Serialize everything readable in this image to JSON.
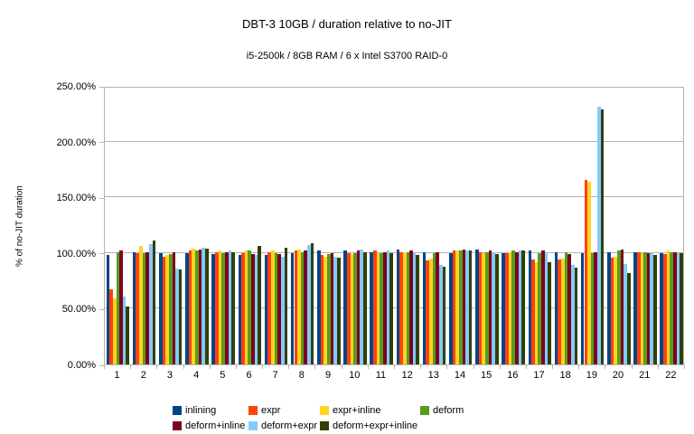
{
  "chart_data": {
    "type": "bar",
    "title": "DBT-3 10GB / duration relative to no-JIT",
    "subtitle": "i5-2500k / 8GB RAM / 6 x Intel S3700 RAID-0",
    "ylabel": "% of no-JIT duration",
    "xlabel": "",
    "ylim": [
      0,
      250
    ],
    "y_tick_step": 50,
    "y_tick_labels": [
      "0.00%",
      "50.00%",
      "100.00%",
      "150.00%",
      "200.00%",
      "250.00%"
    ],
    "grid": "horizontal",
    "legend_position": "bottom",
    "categories": [
      "1",
      "2",
      "3",
      "4",
      "5",
      "6",
      "7",
      "8",
      "9",
      "10",
      "11",
      "12",
      "13",
      "14",
      "15",
      "16",
      "17",
      "18",
      "19",
      "20",
      "21",
      "22"
    ],
    "series": [
      {
        "name": "inlining",
        "color": "#004586",
        "values": [
          98,
          101,
          100,
          100,
          99,
          98,
          98,
          100,
          102,
          102,
          101,
          103,
          101,
          100,
          103,
          100,
          102,
          101,
          100,
          101,
          101,
          100
        ]
      },
      {
        "name": "expr",
        "color": "#ff420e",
        "values": [
          67,
          100,
          97,
          102,
          101,
          100,
          101,
          102,
          98,
          100,
          102,
          101,
          93,
          102,
          101,
          100,
          94,
          94,
          166,
          96,
          101,
          99
        ]
      },
      {
        "name": "expr+inline",
        "color": "#ffd320",
        "values": [
          59,
          106,
          98,
          104,
          102,
          102,
          102,
          103,
          97,
          99,
          100,
          101,
          95,
          102,
          100,
          101,
          92,
          95,
          164,
          97,
          100,
          102
        ]
      },
      {
        "name": "deform",
        "color": "#579d1c",
        "values": [
          101,
          100,
          99,
          102,
          100,
          102,
          100,
          101,
          99,
          100,
          100,
          101,
          100,
          102,
          101,
          102,
          100,
          101,
          100,
          102,
          101,
          101
        ]
      },
      {
        "name": "deform+inline",
        "color": "#7e0021",
        "values": [
          102,
          101,
          101,
          103,
          101,
          99,
          99,
          102,
          100,
          102,
          101,
          102,
          101,
          103,
          102,
          101,
          102,
          99,
          101,
          103,
          100,
          101
        ]
      },
      {
        "name": "deform+expr",
        "color": "#83caff",
        "values": [
          61,
          108,
          86,
          105,
          102,
          98,
          97,
          107,
          97,
          103,
          102,
          100,
          89,
          102,
          101,
          102,
          101,
          89,
          231,
          90,
          100,
          100
        ]
      },
      {
        "name": "deform+expr+inline",
        "color": "#314004",
        "values": [
          52,
          111,
          85,
          104,
          101,
          106,
          105,
          109,
          96,
          101,
          100,
          98,
          88,
          102,
          99,
          102,
          92,
          87,
          229,
          82,
          98,
          100
        ]
      }
    ]
  },
  "colors": {
    "axis_line": "#b3b3b3",
    "grid_line": "#b3b3b3",
    "text": "#000000",
    "background": "#ffffff"
  }
}
